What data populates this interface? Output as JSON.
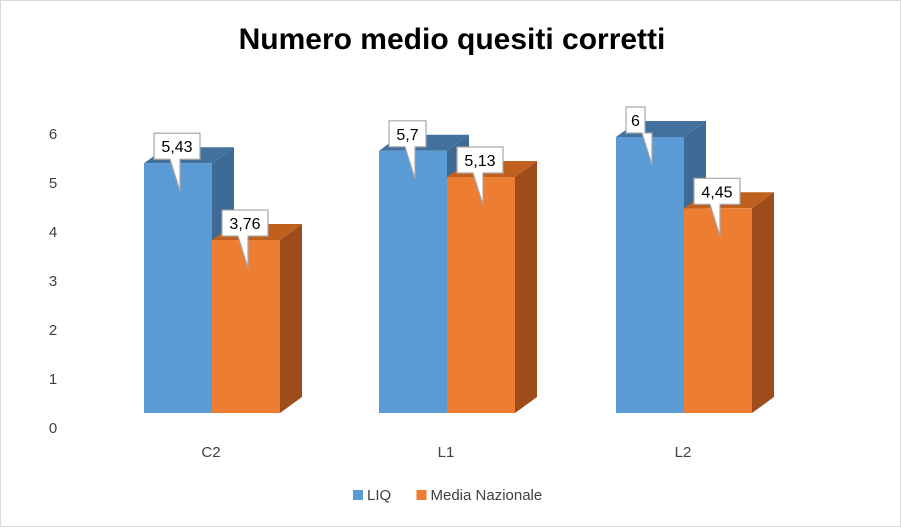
{
  "chart_data": {
    "type": "bar",
    "title": "Numero medio quesiti corretti",
    "categories": [
      "C2",
      "L1",
      "L2"
    ],
    "series": [
      {
        "name": "LIQ",
        "values": [
          5.43,
          5.7,
          6
        ],
        "labels": [
          "5,43",
          "5,7",
          "6"
        ]
      },
      {
        "name": "Media Nazionale",
        "values": [
          3.76,
          5.13,
          4.45
        ],
        "labels": [
          "3,76",
          "5,13",
          "4,45"
        ]
      }
    ],
    "yticks": [
      "0",
      "1",
      "2",
      "3",
      "4",
      "5",
      "6"
    ],
    "ylim": [
      0,
      6
    ],
    "grid": false,
    "legend_position": "bottom",
    "style": "3d-clustered-column",
    "colors": {
      "LIQ": {
        "front": "#5b9bd5",
        "top": "#41719c",
        "side": "#3d6b95"
      },
      "Media Nazionale": {
        "front": "#ed7d31",
        "top": "#c0601e",
        "side": "#9e4c1c"
      },
      "label_border": "#a6a6a6"
    }
  }
}
